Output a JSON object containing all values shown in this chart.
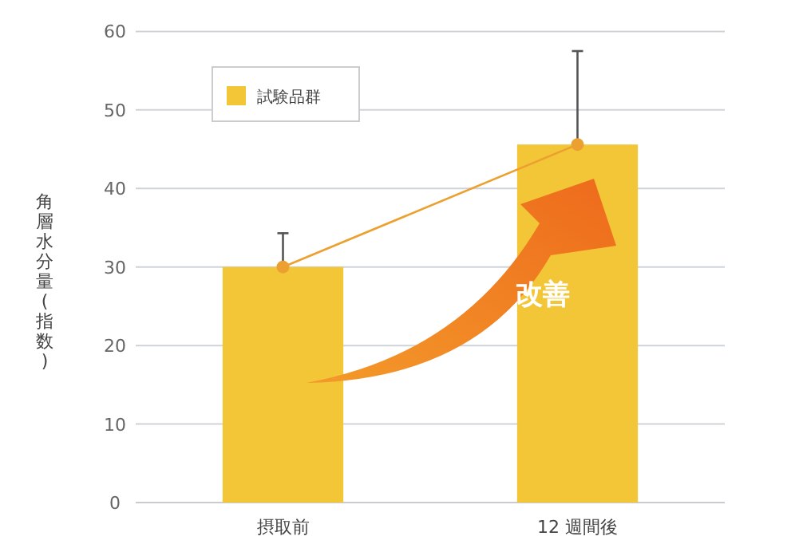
{
  "chart_data": {
    "type": "bar",
    "ylabel": "角層水分量(指数)",
    "categories": [
      "摂取前",
      "12 週間後"
    ],
    "ylim": [
      0,
      60
    ],
    "yticks": [
      0,
      10,
      20,
      30,
      40,
      50,
      60
    ],
    "grid": "y",
    "legend": "top left",
    "annotations": [
      "改善"
    ],
    "series": [
      {
        "name": "試験品群",
        "color": "#f2c637",
        "values": [
          30,
          45.6
        ],
        "errors": [
          [
            30,
            34.3
          ],
          [
            45.6,
            57.5
          ]
        ]
      },
      {
        "type": "line",
        "color": "#eca030",
        "marker": "circle",
        "values": [
          30,
          45.6
        ]
      }
    ]
  }
}
